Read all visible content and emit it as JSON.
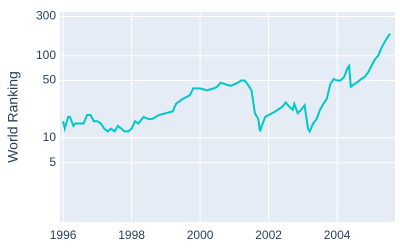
{
  "chart_data": {
    "type": "line",
    "y_label": "World Ranking",
    "log_y": true,
    "grid": true,
    "color": "#00c8c8",
    "plot_bg": "#e5ecf6",
    "xlim": [
      1995.91,
      2005.69
    ],
    "ylim": [
      0.95,
      340
    ],
    "xticks": [
      1996,
      1998,
      2000,
      2002,
      2004
    ],
    "yticks": [
      5,
      10,
      50,
      100,
      300
    ],
    "x": [
      1996.0,
      1996.05,
      1996.15,
      1996.2,
      1996.3,
      1996.35,
      1996.5,
      1996.6,
      1996.7,
      1996.8,
      1996.9,
      1997.0,
      1997.1,
      1997.2,
      1997.3,
      1997.4,
      1997.5,
      1997.6,
      1997.7,
      1997.8,
      1997.9,
      1998.0,
      1998.1,
      1998.2,
      1998.35,
      1998.5,
      1998.6,
      1998.8,
      1999.0,
      1999.2,
      1999.3,
      1999.5,
      1999.7,
      1999.8,
      2000.0,
      2000.2,
      2000.4,
      2000.5,
      2000.6,
      2000.8,
      2000.9,
      2001.0,
      2001.1,
      2001.2,
      2001.3,
      2001.4,
      2001.5,
      2001.6,
      2001.7,
      2001.75,
      2001.8,
      2001.9,
      2002.0,
      2002.1,
      2002.2,
      2002.4,
      2002.5,
      2002.6,
      2002.7,
      2002.75,
      2002.85,
      2002.95,
      2003.05,
      2003.15,
      2003.2,
      2003.3,
      2003.4,
      2003.5,
      2003.6,
      2003.7,
      2003.8,
      2003.9,
      2004.0,
      2004.1,
      2004.2,
      2004.3,
      2004.35,
      2004.4,
      2004.5,
      2004.6,
      2004.7,
      2004.8,
      2004.9,
      2005.0,
      2005.1,
      2005.2,
      2005.3,
      2005.4,
      2005.5,
      2005.55
    ],
    "values": [
      16,
      13,
      18,
      18,
      14,
      15,
      15,
      15,
      19,
      19,
      16,
      16,
      15,
      13,
      12,
      13,
      12,
      14,
      13,
      12,
      12,
      13,
      16,
      15,
      18,
      17,
      17,
      19,
      20,
      21,
      26,
      30,
      33,
      40,
      40,
      38,
      40,
      42,
      47,
      44,
      43,
      45,
      47,
      50,
      50,
      44,
      38,
      20,
      17,
      12,
      14,
      18,
      19,
      20,
      21,
      24,
      27,
      24,
      22,
      26,
      20,
      22,
      25,
      13,
      12,
      15,
      17,
      22,
      26,
      30,
      45,
      52,
      50,
      50,
      55,
      70,
      75,
      42,
      45,
      48,
      52,
      55,
      62,
      75,
      90,
      100,
      125,
      150,
      175,
      185
    ]
  }
}
